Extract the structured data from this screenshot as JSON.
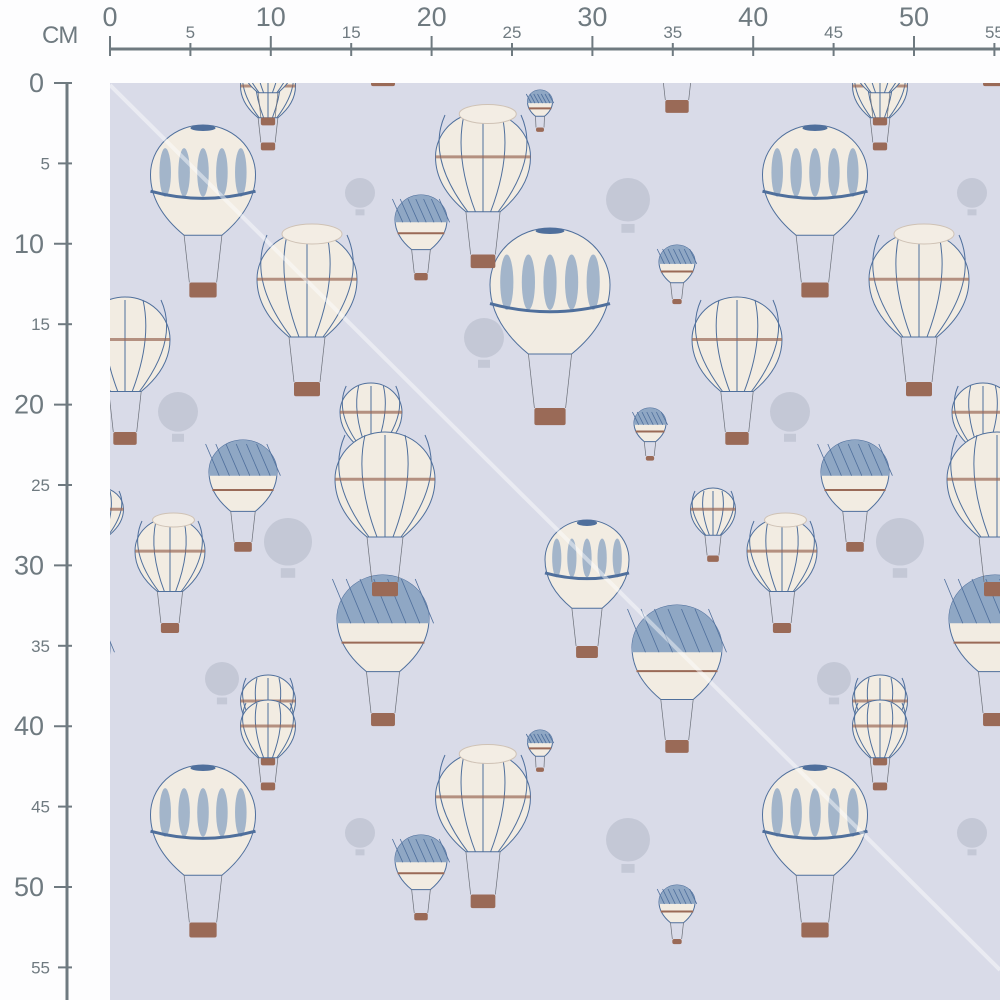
{
  "ruler": {
    "unit": "CM",
    "horizontal_labels": [
      "0",
      "5",
      "10",
      "15",
      "20",
      "25",
      "30",
      "35",
      "40",
      "45",
      "50",
      "55"
    ],
    "vertical_labels": [
      "0",
      "5",
      "10",
      "15",
      "20",
      "25",
      "30",
      "35",
      "40",
      "45",
      "50",
      "55"
    ],
    "color": "#6f7a80"
  },
  "fabric": {
    "background_color": "#d9dbe8",
    "motif": "hot-air-balloons",
    "colors": {
      "cream": "#f2ece2",
      "blue": "#8fa7c4",
      "dark_blue": "#4f6f9c",
      "brown": "#9a6a57",
      "ghost": "#c4c8d6"
    }
  }
}
